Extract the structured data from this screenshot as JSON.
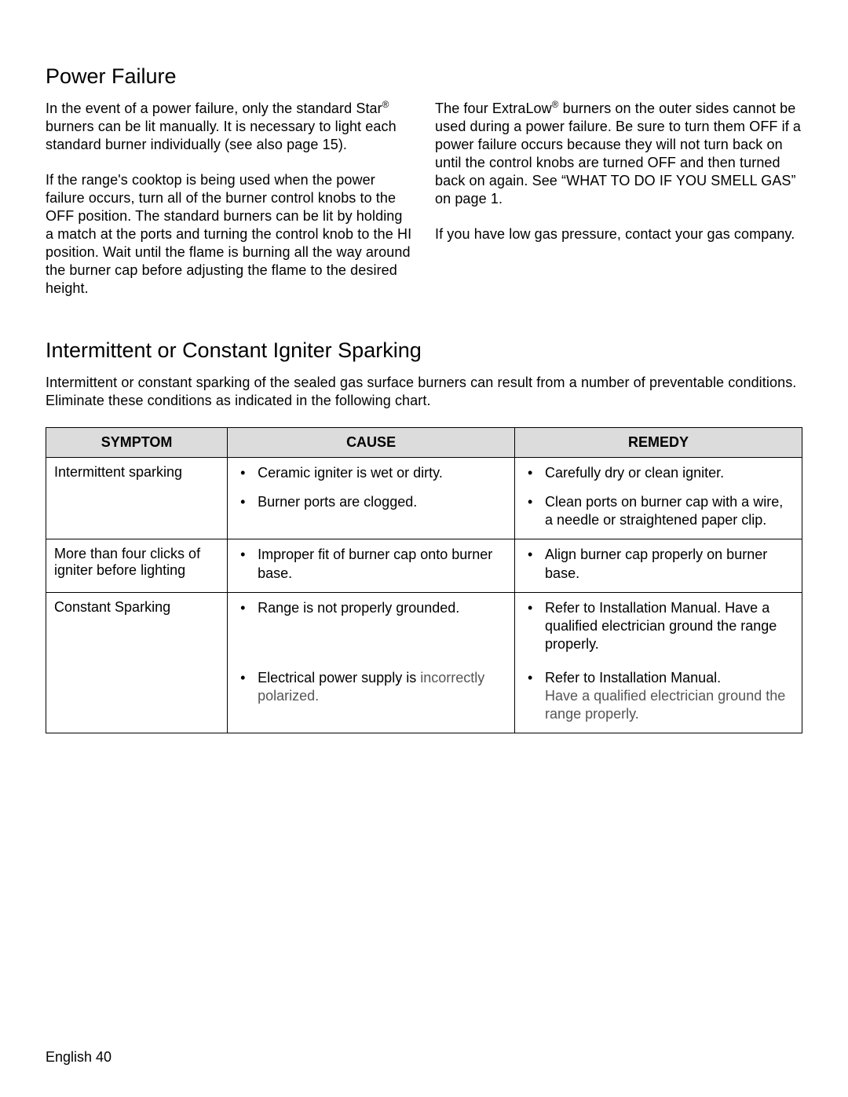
{
  "sections": {
    "powerFailure": {
      "heading": "Power Failure",
      "leftParas": [
        {
          "pre": "In the event of a power failure, only the standard Star",
          "sup": "®",
          "post": " burners can be lit manually. It is necessary to light each standard burner individually (see also page 15)."
        },
        {
          "pre": "If the range's cooktop is being used when the power failure occurs, turn all of the burner control knobs to the OFF position. The standard burners can be lit by holding a match at the ports and turning the control knob to the HI position. Wait until the flame is burning all the way around the burner cap before adjusting the flame to the desired height.",
          "sup": "",
          "post": ""
        }
      ],
      "rightParas": [
        {
          "pre": "The four ExtraLow",
          "sup": "®",
          "post": " burners on the outer sides cannot be used during a power failure. Be sure to turn them OFF if a power failure occurs because they will not turn back on until the control knobs are turned OFF and then turned back on again. See “WHAT TO DO IF YOU SMELL GAS” on page 1."
        },
        {
          "pre": "If you have low gas pressure, contact your gas company.",
          "sup": "",
          "post": ""
        }
      ]
    },
    "igniter": {
      "heading": "Intermittent or Constant Igniter Sparking",
      "intro": "Intermittent or constant sparking of the sealed gas surface burners can result from a number of preventable conditions. Eliminate these conditions as indicated in the following chart."
    }
  },
  "table": {
    "headers": {
      "symptom": "SYMPTOM",
      "cause": "CAUSE",
      "remedy": "REMEDY"
    },
    "rows": [
      {
        "symptom": "Intermittent sparking",
        "causes": [
          "Ceramic igniter is wet or dirty.",
          "Burner ports are clogged."
        ],
        "remedies": [
          "Carefully dry or clean igniter.",
          "Clean ports on burner cap with a wire, a needle or straightened paper clip."
        ]
      },
      {
        "symptom": "More than four clicks of igniter before lighting",
        "causes": [
          "Improper fit of burner cap onto burner base."
        ],
        "remedies": [
          "Align burner cap properly on burner base."
        ]
      },
      {
        "symptom": "Constant Sparking",
        "causes": [
          "Range is not properly grounded."
        ],
        "remedies": [
          "Refer to Installation Manual. Have a qualified electrician ground the range properly."
        ]
      },
      {
        "symptom": "",
        "causes_rich": [
          {
            "pre": "Electrical power supply is ",
            "mid": "incorrectly polarized.",
            "mid_muted": true
          }
        ],
        "remedies_rich": [
          {
            "pre": "Refer to Installation Manual.",
            "post": "Have a qualified electrician ground the range properly.",
            "post_muted": true
          }
        ]
      }
    ]
  },
  "footer": "English 40"
}
